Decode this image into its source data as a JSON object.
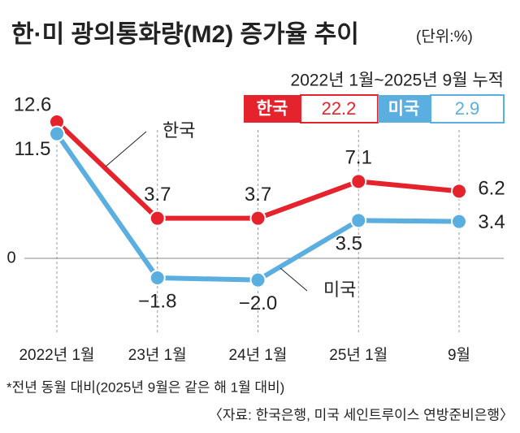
{
  "chart_data": {
    "type": "line",
    "title": "한·미 광의통화량(M2) 증가율 추이",
    "unit": "(단위:%)",
    "categories": [
      "2022년 1월",
      "23년 1월",
      "24년 1월",
      "25년 1월",
      "9월"
    ],
    "series": [
      {
        "name": "한국",
        "color": "#e5232c",
        "values": [
          12.6,
          3.7,
          3.7,
          7.1,
          6.2
        ],
        "value_labels": [
          "12.6",
          "3.7",
          "3.7",
          "7.1",
          "6.2"
        ]
      },
      {
        "name": "미국",
        "color": "#5aaee0",
        "values": [
          11.5,
          -1.8,
          -2.0,
          3.5,
          3.4
        ],
        "value_labels": [
          "11.5",
          "−1.8",
          "−2.0",
          "3.5",
          "3.4"
        ]
      }
    ],
    "ylim": [
      -6,
      13.5
    ],
    "yticks": [
      0
    ],
    "cumulative": {
      "label": "2022년 1월~2025년 9월 누적",
      "values": [
        22.2,
        2.9
      ]
    },
    "footnote": "*전년 동월 대비(2025년 9월은 같은 해 1월 대비)",
    "source": "〈자료: 한국은행, 미국 세인트루이스 연방준비은행〉"
  }
}
